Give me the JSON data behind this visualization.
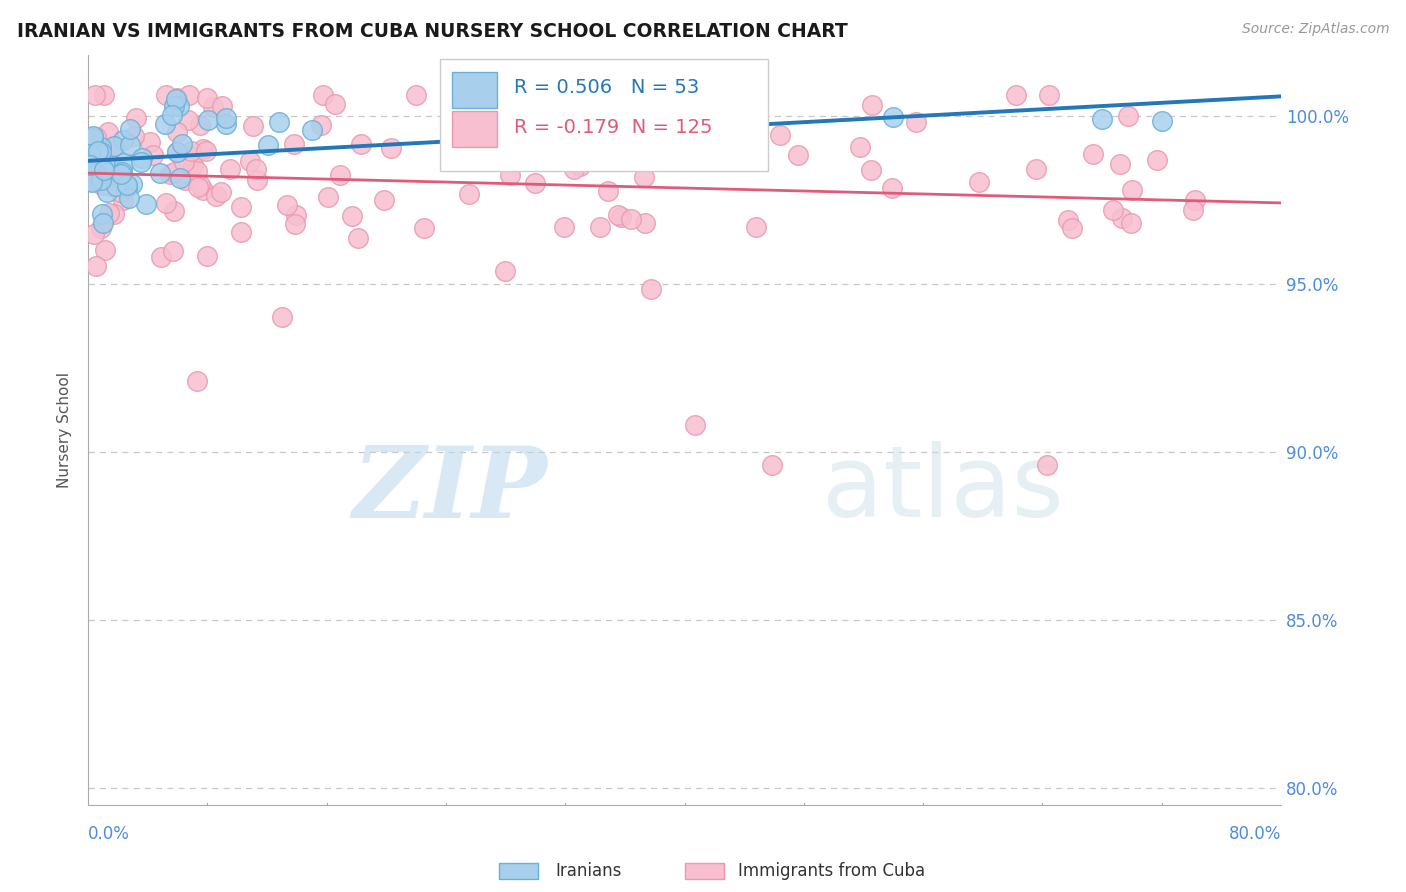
{
  "title": "IRANIAN VS IMMIGRANTS FROM CUBA NURSERY SCHOOL CORRELATION CHART",
  "source": "Source: ZipAtlas.com",
  "ylabel": "Nursery School",
  "ytick_labels": [
    "80.0%",
    "85.0%",
    "90.0%",
    "95.0%",
    "100.0%"
  ],
  "ytick_values": [
    0.8,
    0.85,
    0.9,
    0.95,
    1.0
  ],
  "xmin": 0.0,
  "xmax": 0.8,
  "ymin": 0.795,
  "ymax": 1.018,
  "blue_R": 0.506,
  "blue_N": 53,
  "pink_R": -0.179,
  "pink_N": 125,
  "blue_color": "#a8d0ed",
  "blue_edge_color": "#6aafd6",
  "blue_line_color": "#2477b8",
  "pink_color": "#f7bfcf",
  "pink_edge_color": "#e89ab0",
  "pink_line_color": "#e05a7a",
  "legend_label_blue": "Iranians",
  "legend_label_pink": "Immigrants from Cuba",
  "watermark_zip": "ZIP",
  "watermark_atlas": "atlas",
  "background_color": "#ffffff",
  "grid_color": "#c8c8c8",
  "tick_label_color": "#4d8cdb",
  "title_color": "#1a1a1a",
  "title_fontsize": 13.5,
  "source_fontsize": 10,
  "ylabel_fontsize": 11,
  "ytick_fontsize": 12,
  "legend_fontsize": 14
}
